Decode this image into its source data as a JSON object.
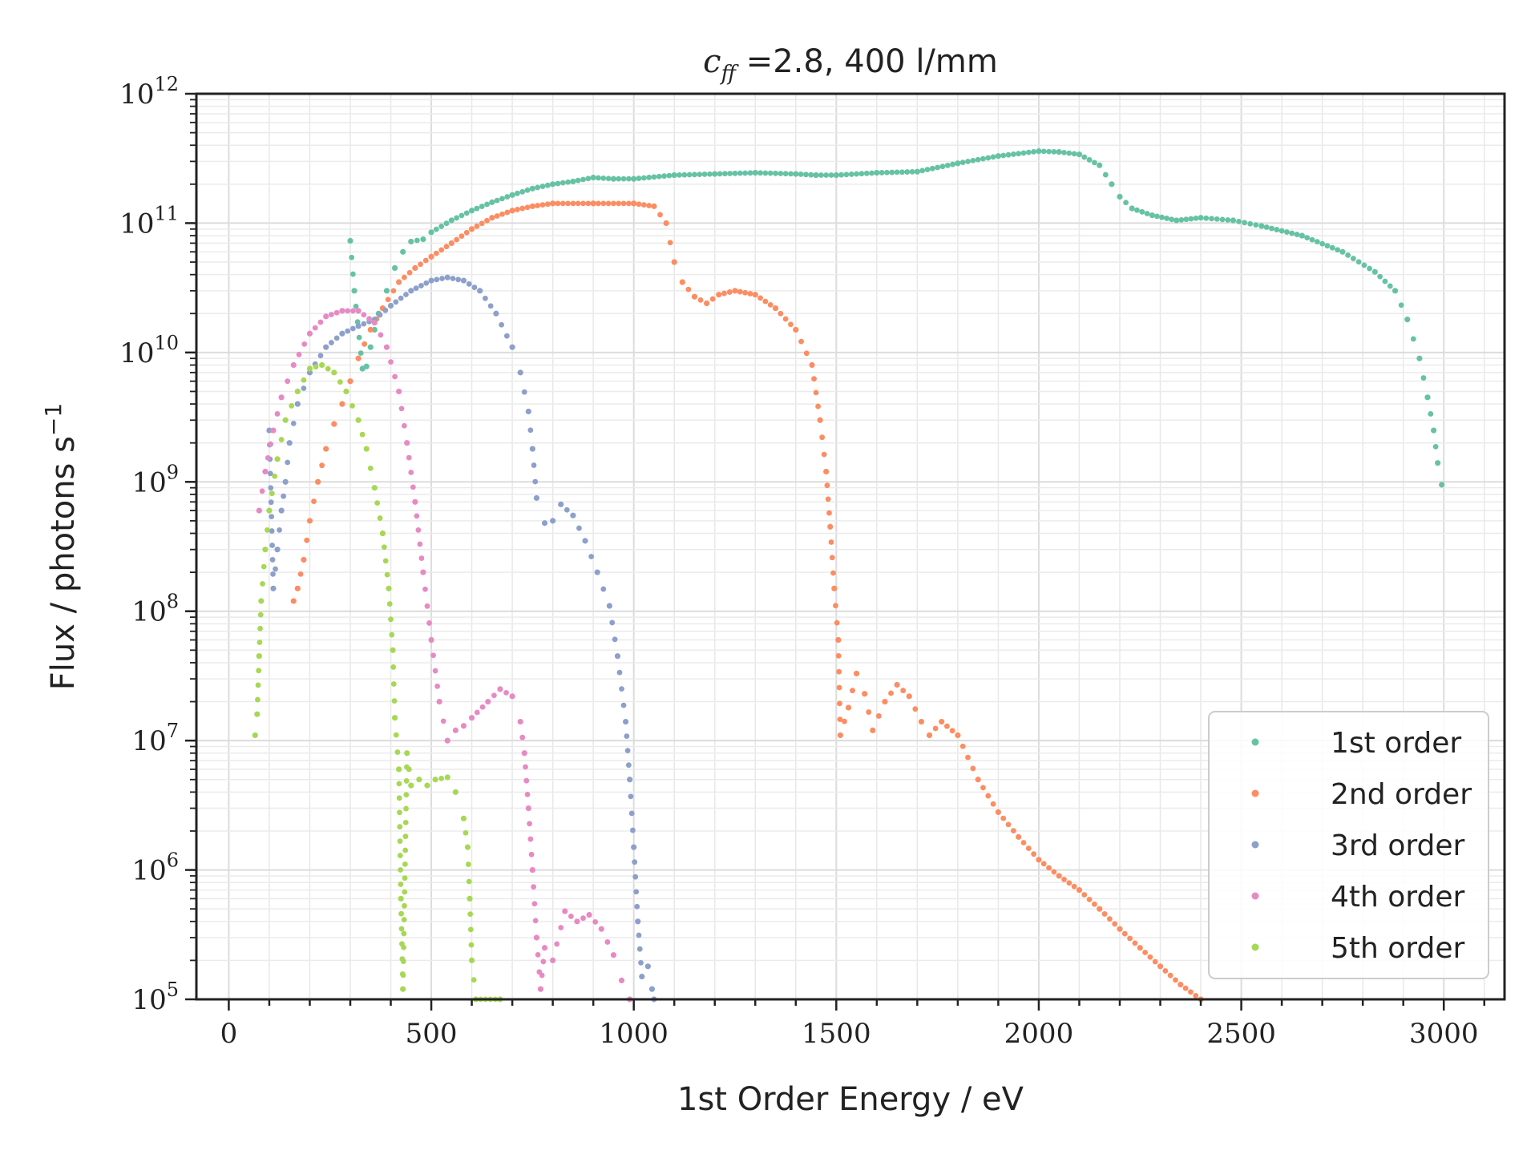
{
  "chart_data": {
    "type": "scatter",
    "title_math": "c",
    "title_math_sub": "ff",
    "title_rest": " =2.8, 400 l/mm",
    "xlabel": "1st Order Energy / eV",
    "ylabel": "Flux / photons s",
    "ylabel_sup": "−1",
    "xlim": [
      -80,
      3150
    ],
    "ylim_log10": [
      5,
      12
    ],
    "yscale": "log",
    "grid": true,
    "x_ticks": [
      0,
      500,
      1000,
      1500,
      2000,
      2500,
      3000
    ],
    "y_tick_exponents": [
      5,
      6,
      7,
      8,
      9,
      10,
      11,
      12
    ],
    "y_tick_base": "10",
    "legend_position": "lower right",
    "series": [
      {
        "name": "1st order",
        "color": "#66c2a5",
        "points": [
          [
            300,
            73000000000.0
          ],
          [
            310,
            30000000000.0
          ],
          [
            330,
            7500000000.0
          ],
          [
            340,
            7800000000.0
          ],
          [
            350,
            11000000000.0
          ],
          [
            360,
            15000000000.0
          ],
          [
            370,
            20000000000.0
          ],
          [
            390,
            30000000000.0
          ],
          [
            410,
            45000000000.0
          ],
          [
            430,
            60000000000.0
          ],
          [
            450,
            72000000000.0
          ],
          [
            480,
            75000000000.0
          ],
          [
            500,
            85000000000.0
          ],
          [
            550,
            105000000000.0
          ],
          [
            600,
            125000000000.0
          ],
          [
            650,
            145000000000.0
          ],
          [
            700,
            165000000000.0
          ],
          [
            750,
            185000000000.0
          ],
          [
            800,
            200000000000.0
          ],
          [
            850,
            210000000000.0
          ],
          [
            900,
            225000000000.0
          ],
          [
            950,
            220000000000.0
          ],
          [
            1000,
            220000000000.0
          ],
          [
            1100,
            235000000000.0
          ],
          [
            1200,
            240000000000.0
          ],
          [
            1300,
            245000000000.0
          ],
          [
            1400,
            240000000000.0
          ],
          [
            1450,
            235000000000.0
          ],
          [
            1500,
            235000000000.0
          ],
          [
            1600,
            245000000000.0
          ],
          [
            1700,
            250000000000.0
          ],
          [
            1800,
            290000000000.0
          ],
          [
            1900,
            330000000000.0
          ],
          [
            2000,
            360000000000.0
          ],
          [
            2050,
            355000000000.0
          ],
          [
            2100,
            340000000000.0
          ],
          [
            2150,
            280000000000.0
          ],
          [
            2180,
            200000000000.0
          ],
          [
            2200,
            160000000000.0
          ],
          [
            2230,
            130000000000.0
          ],
          [
            2280,
            115000000000.0
          ],
          [
            2340,
            105000000000.0
          ],
          [
            2400,
            110000000000.0
          ],
          [
            2480,
            105000000000.0
          ],
          [
            2550,
            95000000000.0
          ],
          [
            2650,
            80000000000.0
          ],
          [
            2750,
            60000000000.0
          ],
          [
            2830,
            42000000000.0
          ],
          [
            2880,
            30000000000.0
          ],
          [
            2910,
            18000000000.0
          ],
          [
            2940,
            9000000000.0
          ],
          [
            2960,
            4500000000.0
          ],
          [
            2975,
            2500000000.0
          ],
          [
            2985,
            1400000000.0
          ],
          [
            2995,
            950000000.0
          ]
        ]
      },
      {
        "name": "2nd order",
        "color": "#fc8d62",
        "points": [
          [
            160,
            120000000.0
          ],
          [
            170,
            150000000.0
          ],
          [
            185,
            250000000.0
          ],
          [
            200,
            500000000.0
          ],
          [
            220,
            1000000000.0
          ],
          [
            240,
            1800000000.0
          ],
          [
            260,
            2800000000.0
          ],
          [
            280,
            4000000000.0
          ],
          [
            300,
            6000000000.0
          ],
          [
            320,
            9000000000.0
          ],
          [
            350,
            15000000000.0
          ],
          [
            380,
            22000000000.0
          ],
          [
            420,
            35000000000.0
          ],
          [
            460,
            45000000000.0
          ],
          [
            500,
            55000000000.0
          ],
          [
            550,
            70000000000.0
          ],
          [
            600,
            90000000000.0
          ],
          [
            650,
            110000000000.0
          ],
          [
            700,
            125000000000.0
          ],
          [
            750,
            135000000000.0
          ],
          [
            800,
            142000000000.0
          ],
          [
            900,
            142000000000.0
          ],
          [
            1000,
            142000000000.0
          ],
          [
            1050,
            135000000000.0
          ],
          [
            1080,
            100000000000.0
          ],
          [
            1100,
            50000000000.0
          ],
          [
            1120,
            35000000000.0
          ],
          [
            1150,
            27000000000.0
          ],
          [
            1180,
            24000000000.0
          ],
          [
            1210,
            28000000000.0
          ],
          [
            1250,
            30000000000.0
          ],
          [
            1300,
            28000000000.0
          ],
          [
            1350,
            22000000000.0
          ],
          [
            1400,
            15000000000.0
          ],
          [
            1440,
            8000000000.0
          ],
          [
            1460,
            3000000000.0
          ],
          [
            1475,
            1200000000.0
          ],
          [
            1485,
            450000000.0
          ],
          [
            1495,
            150000000.0
          ],
          [
            1505,
            60000000.0
          ],
          [
            1510,
            11000000.0
          ],
          [
            1530,
            18000000.0
          ],
          [
            1550,
            33000000.0
          ],
          [
            1570,
            23000000.0
          ],
          [
            1590,
            12000000.0
          ],
          [
            1620,
            20000000.0
          ],
          [
            1650,
            27000000.0
          ],
          [
            1680,
            22000000.0
          ],
          [
            1710,
            14000000.0
          ],
          [
            1730,
            11000000.0
          ],
          [
            1760,
            14000000.0
          ],
          [
            1800,
            11000000.0
          ],
          [
            1850,
            5000000.0
          ],
          [
            1900,
            2800000.0
          ],
          [
            1950,
            1800000.0
          ],
          [
            2000,
            1200000.0
          ],
          [
            2050,
            900000.0
          ],
          [
            2100,
            700000.0
          ],
          [
            2150,
            500000.0
          ],
          [
            2200,
            350000.0
          ],
          [
            2250,
            250000.0
          ],
          [
            2300,
            180000.0
          ],
          [
            2350,
            130000.0
          ],
          [
            2400,
            100000.0
          ]
        ]
      },
      {
        "name": "3rd order",
        "color": "#8da0cb",
        "points": [
          [
            100,
            2500000000.0
          ],
          [
            110,
            150000000.0
          ],
          [
            120,
            300000000.0
          ],
          [
            130,
            600000000.0
          ],
          [
            140,
            1000000000.0
          ],
          [
            150,
            2000000000.0
          ],
          [
            170,
            4000000000.0
          ],
          [
            200,
            7000000000.0
          ],
          [
            240,
            11000000000.0
          ],
          [
            280,
            14000000000.0
          ],
          [
            320,
            16000000000.0
          ],
          [
            360,
            18000000000.0
          ],
          [
            400,
            23000000000.0
          ],
          [
            450,
            30000000000.0
          ],
          [
            500,
            36000000000.0
          ],
          [
            540,
            38000000000.0
          ],
          [
            580,
            36000000000.0
          ],
          [
            620,
            30000000000.0
          ],
          [
            660,
            20000000000.0
          ],
          [
            700,
            11000000000.0
          ],
          [
            720,
            7000000000.0
          ],
          [
            740,
            3500000000.0
          ],
          [
            750,
            1800000000.0
          ],
          [
            760,
            750000000.0
          ],
          [
            780,
            480000000.0
          ],
          [
            800,
            500000000.0
          ],
          [
            820,
            670000000.0
          ],
          [
            850,
            550000000.0
          ],
          [
            880,
            350000000.0
          ],
          [
            910,
            200000000.0
          ],
          [
            940,
            110000000.0
          ],
          [
            960,
            45000000.0
          ],
          [
            980,
            14000000.0
          ],
          [
            990,
            5000000.0
          ],
          [
            1000,
            1500000.0
          ],
          [
            1010,
            400000.0
          ],
          [
            1020,
            150000.0
          ],
          [
            1035,
            180000.0
          ],
          [
            1045,
            120000.0
          ],
          [
            1050,
            100000.0
          ]
        ]
      },
      {
        "name": "4th order",
        "color": "#e78ac3",
        "points": [
          [
            75,
            600000000.0
          ],
          [
            90,
            1200000000.0
          ],
          [
            110,
            2500000000.0
          ],
          [
            130,
            4500000000.0
          ],
          [
            160,
            8000000000.0
          ],
          [
            200,
            14000000000.0
          ],
          [
            240,
            19000000000.0
          ],
          [
            280,
            21000000000.0
          ],
          [
            320,
            21000000000.0
          ],
          [
            360,
            17000000000.0
          ],
          [
            390,
            11000000000.0
          ],
          [
            420,
            5000000000.0
          ],
          [
            440,
            2000000000.0
          ],
          [
            460,
            700000000.0
          ],
          [
            480,
            200000000.0
          ],
          [
            500,
            60000000.0
          ],
          [
            520,
            20000000.0
          ],
          [
            540,
            10000000.0
          ],
          [
            560,
            12000000.0
          ],
          [
            580,
            13000000.0
          ],
          [
            600,
            15000000.0
          ],
          [
            640,
            20000000.0
          ],
          [
            670,
            25000000.0
          ],
          [
            700,
            22000000.0
          ],
          [
            720,
            14000000.0
          ],
          [
            730,
            8000000.0
          ],
          [
            740,
            3000000.0
          ],
          [
            750,
            1000000.0
          ],
          [
            760,
            300000.0
          ],
          [
            770,
            120000.0
          ],
          [
            780,
            250000.0
          ],
          [
            800,
            200000.0
          ],
          [
            830,
            480000.0
          ],
          [
            860,
            400000.0
          ],
          [
            890,
            450000.0
          ],
          [
            920,
            350000.0
          ],
          [
            950,
            220000.0
          ],
          [
            970,
            140000.0
          ],
          [
            990,
            100000.0
          ]
        ]
      },
      {
        "name": "5th order",
        "color": "#a6d854",
        "points": [
          [
            65,
            11000000.0
          ],
          [
            70,
            16000000.0
          ],
          [
            75,
            45000000.0
          ],
          [
            80,
            120000000.0
          ],
          [
            90,
            300000000.0
          ],
          [
            100,
            600000000.0
          ],
          [
            120,
            1500000000.0
          ],
          [
            140,
            3000000000.0
          ],
          [
            170,
            5000000000.0
          ],
          [
            200,
            7500000000.0
          ],
          [
            230,
            8000000000.0
          ],
          [
            260,
            7000000000.0
          ],
          [
            290,
            5000000000.0
          ],
          [
            320,
            3000000000.0
          ],
          [
            340,
            1800000000.0
          ],
          [
            360,
            900000000.0
          ],
          [
            380,
            400000000.0
          ],
          [
            395,
            150000000.0
          ],
          [
            405,
            50000000.0
          ],
          [
            410,
            15000000.0
          ],
          [
            420,
            6000000.0
          ],
          [
            425,
            600000.0
          ],
          [
            430,
            120000.0
          ],
          [
            440,
            8000000.0
          ],
          [
            450,
            4500000.0
          ],
          [
            470,
            5000000.0
          ],
          [
            490,
            4500000.0
          ],
          [
            510,
            5000000.0
          ],
          [
            540,
            5200000.0
          ],
          [
            560,
            4000000.0
          ],
          [
            580,
            2500000.0
          ],
          [
            590,
            1500000.0
          ],
          [
            595,
            600000.0
          ],
          [
            600,
            200000.0
          ],
          [
            610,
            100000.0
          ],
          [
            670,
            100000.0
          ]
        ]
      }
    ]
  }
}
